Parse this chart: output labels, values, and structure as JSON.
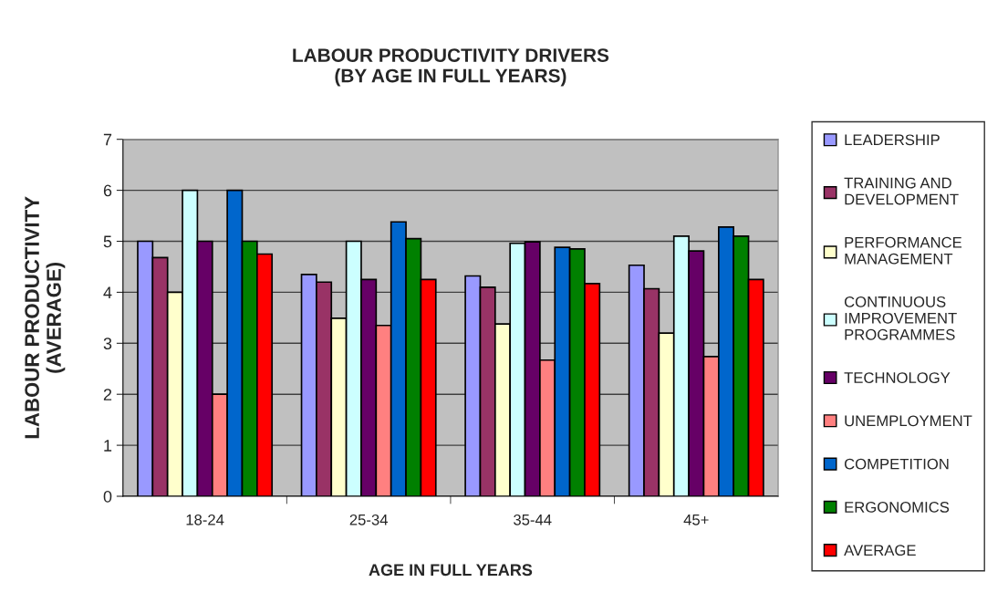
{
  "chart_data": {
    "type": "bar",
    "title": "LABOUR PRODUCTIVITY DRIVERS\n(BY AGE IN FULL YEARS)",
    "xlabel": "AGE IN FULL YEARS",
    "ylabel": "LABOUR PRODUCTIVITY\n(AVERAGE)",
    "categories": [
      "18-24",
      "25-34",
      "35-44",
      "45+"
    ],
    "series": [
      {
        "name": "LEADERSHIP",
        "color": "#9999ff",
        "values": [
          5,
          4.35,
          4.32,
          4.53
        ]
      },
      {
        "name": "TRAINING AND\nDEVELOPMENT",
        "color": "#993366",
        "values": [
          4.68,
          4.2,
          4.1,
          4.07
        ]
      },
      {
        "name": "PERFORMANCE\nMANAGEMENT",
        "color": "#ffffcc",
        "values": [
          4,
          3.49,
          3.38,
          3.2
        ]
      },
      {
        "name": "CONTINUOUS\nIMPROVEMENT\nPROGRAMMES",
        "color": "#ccffff",
        "values": [
          6,
          5,
          4.96,
          5.1
        ]
      },
      {
        "name": "TECHNOLOGY",
        "color": "#660066",
        "values": [
          5,
          4.25,
          4.99,
          4.81
        ]
      },
      {
        "name": "UNEMPLOYMENT",
        "color": "#ff8080",
        "values": [
          2,
          3.35,
          2.67,
          2.74
        ]
      },
      {
        "name": "COMPETITION",
        "color": "#0066cc",
        "values": [
          6,
          5.38,
          4.88,
          5.28
        ]
      },
      {
        "name": "ERGONOMICS",
        "color": "#008000",
        "values": [
          5,
          5.05,
          4.85,
          5.1
        ]
      },
      {
        "name": "AVERAGE",
        "color": "#ff0000",
        "values": [
          4.75,
          4.25,
          4.17,
          4.25
        ]
      }
    ],
    "ylim": [
      0,
      7
    ],
    "yticks": [
      0,
      1,
      2,
      3,
      4,
      5,
      6,
      7
    ],
    "grid": "y",
    "legend": "right"
  }
}
